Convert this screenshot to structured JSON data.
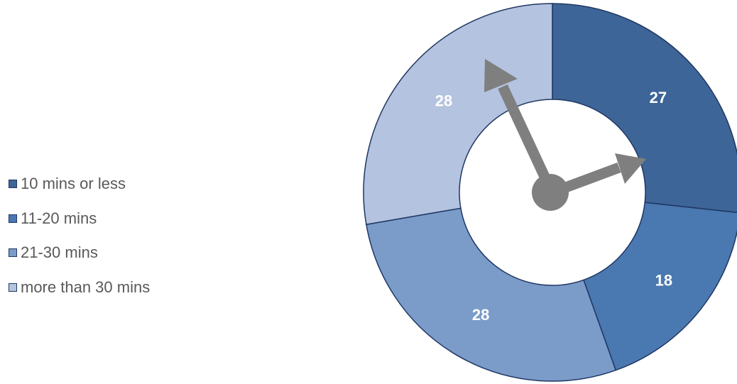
{
  "chart_data": {
    "type": "pie",
    "subtype": "doughnut",
    "categories": [
      "10 mins or less",
      "11-20 mins",
      "21-30 mins",
      "more than 30 mins"
    ],
    "values": [
      27,
      18,
      28,
      28
    ],
    "data_labels": [
      "27",
      "18",
      "28",
      "28"
    ],
    "colors": [
      "#3e6597",
      "#4a78b0",
      "#7b9bc9",
      "#b4c3df"
    ],
    "border_color": "#1f3763",
    "legend_position": "left",
    "start_angle": "12 o'clock",
    "direction": "clockwise",
    "decoration": "clock hands (hour and minute) in the centre hole",
    "hand_color": "#7f7f7f",
    "title": ""
  }
}
